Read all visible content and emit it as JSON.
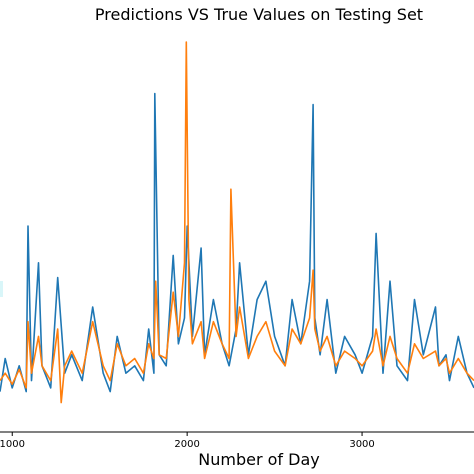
{
  "chart_data": {
    "type": "line",
    "title": "Predictions VS True Values on Testing Set",
    "xlabel": "Number of Day",
    "ylabel": "",
    "xlim": [
      930,
      3640
    ],
    "ylim": [
      0,
      1
    ],
    "x_ticks": [
      {
        "value": 1000,
        "label": "1000"
      },
      {
        "value": 2000,
        "label": "2000"
      },
      {
        "value": 3000,
        "label": "3000"
      }
    ],
    "grid": false,
    "colors": {
      "true": "#1f77b4",
      "pred": "#ff7f0e",
      "axis": "#000000",
      "clip": "#d9f6f9"
    },
    "series": [
      {
        "color": "#1f77b4",
        "x": [
          930,
          960,
          1000,
          1040,
          1080,
          1090,
          1110,
          1150,
          1170,
          1220,
          1260,
          1300,
          1340,
          1400,
          1460,
          1520,
          1560,
          1600,
          1650,
          1700,
          1750,
          1780,
          1810,
          1815,
          1840,
          1880,
          1920,
          1950,
          1985,
          2000,
          2030,
          2080,
          2100,
          2150,
          2200,
          2240,
          2280,
          2300,
          2350,
          2400,
          2450,
          2500,
          2560,
          2600,
          2650,
          2700,
          2720,
          2730,
          2760,
          2800,
          2850,
          2900,
          2960,
          3000,
          3060,
          3080,
          3120,
          3160,
          3200,
          3260,
          3300,
          3350,
          3420,
          3440,
          3480,
          3500,
          3550,
          3600,
          3640
        ],
        "y": [
          0.05,
          0.14,
          0.06,
          0.12,
          0.05,
          0.5,
          0.08,
          0.4,
          0.12,
          0.06,
          0.36,
          0.1,
          0.15,
          0.08,
          0.28,
          0.1,
          0.05,
          0.2,
          0.1,
          0.12,
          0.08,
          0.22,
          0.1,
          0.86,
          0.15,
          0.12,
          0.42,
          0.18,
          0.25,
          0.5,
          0.2,
          0.44,
          0.15,
          0.3,
          0.18,
          0.12,
          0.22,
          0.4,
          0.15,
          0.3,
          0.35,
          0.2,
          0.12,
          0.3,
          0.18,
          0.35,
          0.83,
          0.25,
          0.15,
          0.3,
          0.1,
          0.2,
          0.15,
          0.1,
          0.2,
          0.48,
          0.1,
          0.35,
          0.12,
          0.08,
          0.3,
          0.15,
          0.28,
          0.12,
          0.15,
          0.08,
          0.2,
          0.1,
          0.06
        ]
      },
      {
        "color": "#ff7f0e",
        "x": [
          930,
          960,
          1000,
          1040,
          1080,
          1090,
          1110,
          1150,
          1170,
          1220,
          1260,
          1280,
          1300,
          1340,
          1400,
          1460,
          1520,
          1560,
          1600,
          1650,
          1700,
          1750,
          1780,
          1810,
          1820,
          1840,
          1880,
          1920,
          1950,
          1985,
          1995,
          2010,
          2030,
          2080,
          2100,
          2150,
          2200,
          2240,
          2250,
          2280,
          2300,
          2350,
          2400,
          2450,
          2500,
          2560,
          2600,
          2650,
          2700,
          2720,
          2730,
          2760,
          2800,
          2850,
          2900,
          2960,
          3000,
          3060,
          3080,
          3120,
          3160,
          3200,
          3260,
          3300,
          3350,
          3420,
          3440,
          3480,
          3500,
          3550,
          3600,
          3640
        ],
        "y": [
          0.08,
          0.1,
          0.07,
          0.11,
          0.06,
          0.24,
          0.1,
          0.2,
          0.12,
          0.08,
          0.22,
          0.02,
          0.12,
          0.16,
          0.1,
          0.24,
          0.12,
          0.08,
          0.18,
          0.12,
          0.14,
          0.1,
          0.18,
          0.14,
          0.35,
          0.15,
          0.14,
          0.32,
          0.2,
          0.4,
          1.0,
          0.3,
          0.18,
          0.24,
          0.14,
          0.24,
          0.18,
          0.14,
          0.6,
          0.2,
          0.28,
          0.14,
          0.2,
          0.24,
          0.16,
          0.12,
          0.22,
          0.18,
          0.25,
          0.38,
          0.22,
          0.16,
          0.2,
          0.12,
          0.16,
          0.14,
          0.12,
          0.16,
          0.22,
          0.12,
          0.2,
          0.14,
          0.1,
          0.18,
          0.14,
          0.16,
          0.12,
          0.14,
          0.1,
          0.14,
          0.1,
          0.08
        ]
      }
    ]
  }
}
